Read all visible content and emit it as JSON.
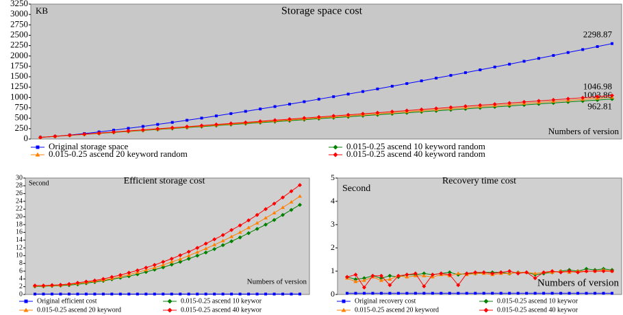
{
  "chart_data": [
    {
      "type": "line",
      "title": "Storage space cost",
      "ylabel": "KB",
      "xlabel": "Numbers of version",
      "ylim": [
        0,
        3250
      ],
      "yticks": [
        0,
        250,
        500,
        750,
        1000,
        1250,
        1500,
        1750,
        2000,
        2250,
        2500,
        2750,
        3000,
        3250
      ],
      "grid": false,
      "background": "#c8c8c8",
      "data_labels": "last",
      "legend": "bottom",
      "series": [
        {
          "name": "Original storage space",
          "color": "#0000ff",
          "marker": "square",
          "values": [
            40,
            63,
            95,
            131,
            171,
            213,
            258,
            304,
            352,
            401,
            452,
            504,
            557,
            612,
            667,
            724,
            782,
            840,
            899,
            960,
            1020,
            1082,
            1144,
            1207,
            1272,
            1336,
            1401,
            1467,
            1533,
            1599,
            1666,
            1735,
            1803,
            1873,
            1943,
            2013,
            2084,
            2155,
            2227,
            2298.87
          ]
        },
        {
          "name": "0.015-0.25 ascend 10 keyword random",
          "color": "#008000",
          "marker": "diamond",
          "values": [
            40,
            64,
            87,
            111,
            135,
            158,
            182,
            206,
            229,
            253,
            277,
            300,
            324,
            348,
            371,
            395,
            419,
            442,
            466,
            490,
            513,
            537,
            561,
            584,
            608,
            632,
            655,
            679,
            703,
            726,
            750,
            774,
            797,
            821,
            845,
            868,
            892,
            916,
            939,
            962.81
          ]
        },
        {
          "name": "0.015-0.25 ascend 20 keyword random",
          "color": "#ff8000",
          "marker": "triangle",
          "values": [
            40,
            65,
            89,
            114,
            139,
            164,
            188,
            213,
            238,
            262,
            287,
            312,
            337,
            361,
            386,
            411,
            435,
            460,
            485,
            510,
            534,
            559,
            584,
            608,
            633,
            658,
            683,
            707,
            732,
            757,
            781,
            806,
            831,
            856,
            880,
            905,
            930,
            954,
            979,
            1003.86
          ]
        },
        {
          "name": "0.015-0.25 ascend 40 keyword random",
          "color": "#ff0000",
          "marker": "diamond",
          "values": [
            40,
            66,
            92,
            117,
            143,
            169,
            195,
            221,
            247,
            272,
            298,
            324,
            350,
            376,
            401,
            427,
            453,
            479,
            505,
            530,
            556,
            582,
            608,
            634,
            659,
            685,
            711,
            737,
            763,
            789,
            814,
            840,
            866,
            892,
            918,
            943,
            969,
            995,
            1021,
            1046.98
          ]
        }
      ]
    },
    {
      "type": "line",
      "title": "Efficient storage cost",
      "ylabel": "Second",
      "xlabel": "Numbers of version",
      "ylim": [
        0,
        30
      ],
      "yticks": [
        0,
        2,
        4,
        6,
        8,
        10,
        12,
        14,
        16,
        18,
        20,
        22,
        24,
        26,
        28,
        30
      ],
      "grid": false,
      "background": "#d0d0d0",
      "legend": "bottom",
      "series": [
        {
          "name": "Original efficient cost",
          "color": "#0000ff",
          "marker": "square",
          "values": [
            0.1,
            0.1,
            0.1,
            0.1,
            0.1,
            0.1,
            0.1,
            0.1,
            0.1,
            0.1,
            0.1,
            0.1,
            0.1,
            0.1,
            0.1,
            0.1,
            0.1,
            0.1,
            0.1,
            0.1,
            0.1,
            0.1,
            0.1,
            0.1,
            0.1,
            0.1,
            0.1,
            0.1,
            0.1,
            0.1,
            0.1,
            0.1
          ]
        },
        {
          "name": "0.015-0.25 ascend 10 keywor",
          "color": "#008000",
          "marker": "diamond",
          "values": [
            2.1,
            2.1,
            2.2,
            2.3,
            2.4,
            2.6,
            2.9,
            3.2,
            3.5,
            3.9,
            4.3,
            4.7,
            5.2,
            5.8,
            6.4,
            7.0,
            7.7,
            8.4,
            9.2,
            10.0,
            10.8,
            11.7,
            12.7,
            13.7,
            14.7,
            15.8,
            16.9,
            18.0,
            19.2,
            20.5,
            21.8,
            23.1
          ]
        },
        {
          "name": "0.015-0.25 ascend 20 keyword",
          "color": "#ff8000",
          "marker": "triangle",
          "values": [
            2.2,
            2.2,
            2.3,
            2.4,
            2.6,
            2.8,
            3.1,
            3.4,
            3.7,
            4.1,
            4.6,
            5.1,
            5.7,
            6.3,
            6.9,
            7.6,
            8.4,
            9.1,
            10.0,
            10.9,
            11.8,
            12.8,
            13.8,
            14.9,
            16.0,
            17.2,
            18.4,
            19.7,
            21.0,
            22.4,
            23.8,
            25.3
          ]
        },
        {
          "name": "0.015-0.25 ascend 40 keywor",
          "color": "#ff0000",
          "marker": "diamond",
          "values": [
            2.3,
            2.3,
            2.4,
            2.5,
            2.7,
            3.0,
            3.3,
            3.6,
            4.0,
            4.5,
            5.0,
            5.6,
            6.2,
            6.9,
            7.6,
            8.4,
            9.2,
            10.1,
            11.0,
            12.0,
            13.1,
            14.2,
            15.3,
            16.6,
            17.8,
            19.1,
            20.5,
            22.0,
            23.4,
            25.0,
            26.6,
            28.2
          ]
        }
      ]
    },
    {
      "type": "line",
      "title": "Recovery time cost",
      "ylabel": "Second",
      "xlabel": "Numbers of version",
      "ylim": [
        0,
        5
      ],
      "yticks": [
        0,
        1,
        2,
        3,
        4,
        5
      ],
      "grid": false,
      "background": "#d0d0d0",
      "legend": "bottom",
      "series": [
        {
          "name": "Original recovery cost",
          "color": "#0000ff",
          "marker": "square",
          "values": [
            0.05,
            0.05,
            0.05,
            0.05,
            0.05,
            0.05,
            0.05,
            0.05,
            0.05,
            0.05,
            0.05,
            0.05,
            0.05,
            0.05,
            0.05,
            0.05,
            0.05,
            0.05,
            0.05,
            0.05,
            0.05,
            0.05,
            0.05,
            0.05,
            0.05,
            0.05,
            0.05,
            0.05,
            0.05,
            0.05,
            0.05,
            0.05
          ]
        },
        {
          "name": "0.015-0.25 ascend 10 keywor",
          "color": "#008000",
          "marker": "diamond",
          "values": [
            0.75,
            0.65,
            0.7,
            0.8,
            0.7,
            0.8,
            0.75,
            0.85,
            0.85,
            0.9,
            0.85,
            0.9,
            0.95,
            0.85,
            0.9,
            0.9,
            0.95,
            0.95,
            0.95,
            0.9,
            0.95,
            0.95,
            0.85,
            0.9,
            0.95,
            1.0,
            1.05,
            1.0,
            1.1,
            1.05,
            1.1,
            1.05
          ]
        },
        {
          "name": "0.015-0.25 ascend 20 keyword",
          "color": "#ff8000",
          "marker": "triangle",
          "values": [
            0.7,
            0.55,
            0.6,
            0.75,
            0.6,
            0.65,
            0.8,
            0.75,
            0.8,
            0.8,
            0.75,
            0.85,
            0.8,
            0.9,
            0.85,
            0.9,
            0.9,
            0.85,
            0.9,
            0.9,
            0.95,
            0.95,
            0.9,
            0.95,
            0.95,
            1.0,
            0.95,
            1.0,
            1.0,
            1.0,
            1.05,
            1.0
          ]
        },
        {
          "name": "0.015-0.25 ascend 40 keywor",
          "color": "#ff0000",
          "marker": "diamond",
          "values": [
            0.75,
            0.85,
            0.3,
            0.8,
            0.8,
            0.4,
            0.8,
            0.85,
            0.9,
            0.35,
            0.85,
            0.9,
            0.85,
            0.4,
            0.9,
            0.95,
            0.95,
            0.9,
            0.95,
            1.0,
            0.9,
            0.95,
            0.7,
            0.95,
            1.0,
            0.95,
            1.0,
            0.95,
            1.0,
            1.0,
            1.0,
            1.0
          ]
        }
      ]
    }
  ]
}
